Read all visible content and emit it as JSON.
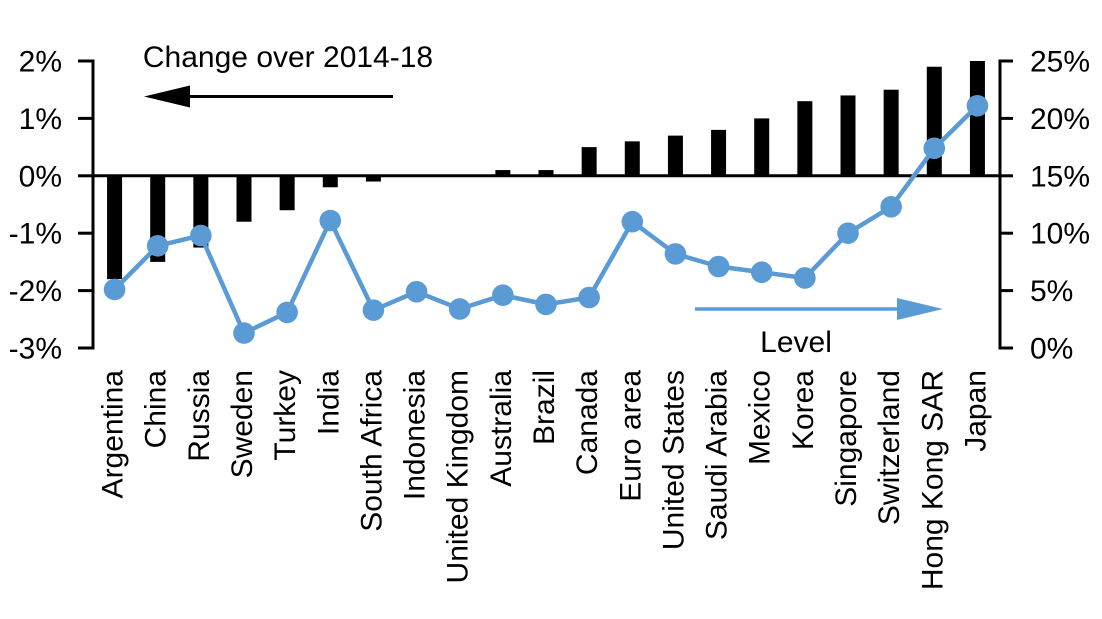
{
  "chart_data": {
    "type": "bar+line combo (dual axis)",
    "title": "Change over 2014-18",
    "categories": [
      "Argentina",
      "China",
      "Russia",
      "Sweden",
      "Turkey",
      "India",
      "South Africa",
      "Indonesia",
      "United Kingdom",
      "Australia",
      "Brazil",
      "Canada",
      "Euro area",
      "United States",
      "Saudi Arabia",
      "Mexico",
      "Korea",
      "Singapore",
      "Switzerland",
      "Hong Kong SAR",
      "Japan"
    ],
    "series": [
      {
        "name": "Change over 2014-18",
        "type": "bar",
        "axis": "left",
        "color": "#000000",
        "values": [
          -1.8,
          -1.5,
          -1.25,
          -0.8,
          -0.6,
          -0.2,
          -0.1,
          0,
          0,
          0.1,
          0.1,
          0.5,
          0.6,
          0.7,
          0.8,
          1.0,
          1.3,
          1.4,
          1.5,
          1.9,
          2.0
        ]
      },
      {
        "name": "Level",
        "type": "line",
        "axis": "right",
        "color": "#5B9BD5",
        "values": [
          5.1,
          8.9,
          9.8,
          1.3,
          3.1,
          11.1,
          3.3,
          4.9,
          3.4,
          4.6,
          3.8,
          4.4,
          11.0,
          8.2,
          7.1,
          6.6,
          6.1,
          10.0,
          12.3,
          17.4,
          21.1
        ]
      }
    ],
    "left_axis": {
      "ticks": [
        "2%",
        "1%",
        "0%",
        "-1%",
        "-2%",
        "-3%"
      ],
      "max": 2,
      "min": -3,
      "unit": "%"
    },
    "right_axis": {
      "ticks": [
        "25%",
        "20%",
        "15%",
        "10%",
        "5%",
        "0%"
      ],
      "max": 25,
      "min": 0,
      "unit": "%"
    },
    "grid": false,
    "legend_position": "in-plot annotations with arrows",
    "annotations": [
      {
        "text": "Change over 2014-18",
        "arrow_direction": "left",
        "refers_to": "bars / left axis",
        "color": "#000000"
      },
      {
        "text": "Level",
        "arrow_direction": "right",
        "refers_to": "line / right axis",
        "color": "#5B9BD5"
      }
    ]
  }
}
